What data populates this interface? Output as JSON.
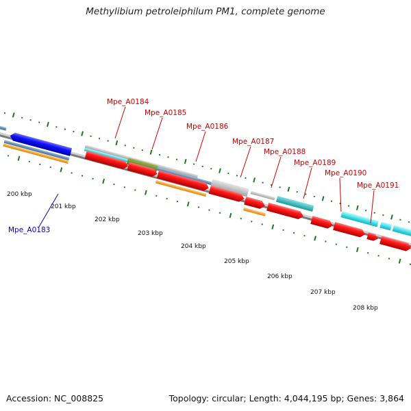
{
  "title": "Methylibium petroleiphilum PM1, complete genome",
  "footer": {
    "accession": "Accession: NC_008825",
    "summary": "Topology: circular; Length: 4,044,195 bp; Genes: 3,864"
  },
  "colors": {
    "backbone": "#888888",
    "cds": "#ff0000",
    "rna_blue": "#0000ff",
    "label_red": "#cc0000",
    "label_blue": "#0000cc",
    "gc_skew": "#1a7a1a",
    "steel": "#4a7fb5",
    "orange": "#ff9900",
    "cyan": "#00e5ee",
    "olive": "#6b8e23",
    "gray": "#b0b0b0"
  },
  "scale_ticks": [
    "200 kbp",
    "201 kbp",
    "202 kbp",
    "203 kbp",
    "204 kbp",
    "205 kbp",
    "206 kbp",
    "207 kbp",
    "208 kbp"
  ],
  "gene_labels": [
    {
      "name": "Mpe_A0183",
      "color": "blue"
    },
    {
      "name": "Mpe_A0184",
      "color": "red"
    },
    {
      "name": "Mpe_A0185",
      "color": "red"
    },
    {
      "name": "Mpe_A0186",
      "color": "red"
    },
    {
      "name": "Mpe_A0187",
      "color": "red"
    },
    {
      "name": "Mpe_A0188",
      "color": "red"
    },
    {
      "name": "Mpe_A0189",
      "color": "red"
    },
    {
      "name": "Mpe_A0190",
      "color": "red"
    },
    {
      "name": "Mpe_A0191",
      "color": "red"
    }
  ]
}
